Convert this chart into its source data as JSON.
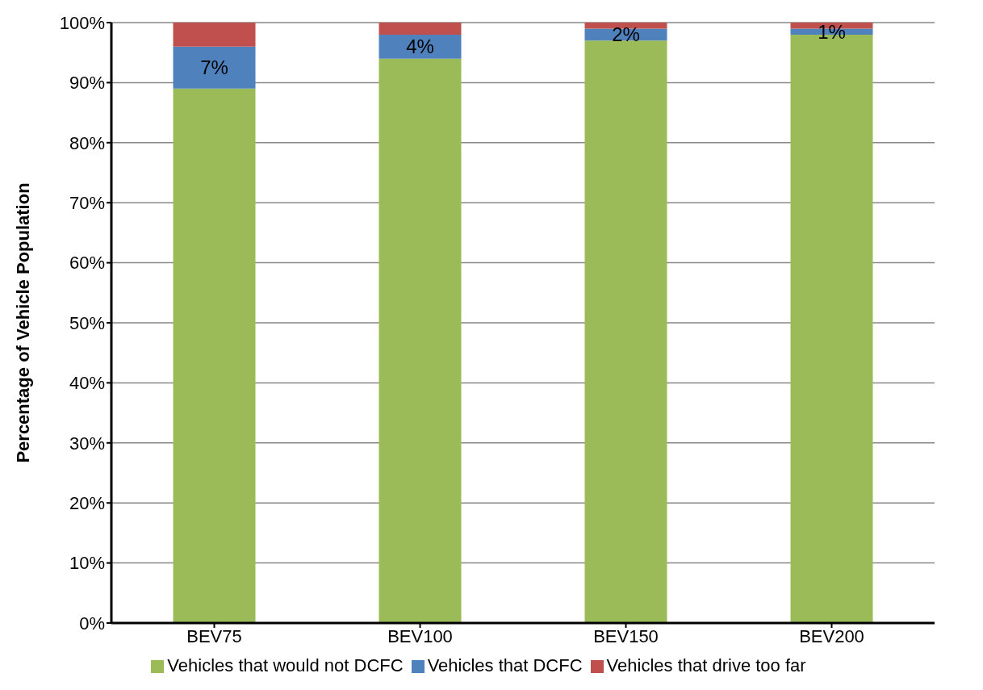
{
  "chart_data": {
    "type": "bar",
    "stacked": true,
    "ylabel": "Percentage of Vehicle Population",
    "categories": [
      "BEV75",
      "BEV100",
      "BEV150",
      "BEV200"
    ],
    "series": [
      {
        "name": "Vehicles that would not DCFC",
        "color": "#9bbb59",
        "values": [
          89,
          94,
          97,
          98
        ]
      },
      {
        "name": "Vehicles that DCFC",
        "color": "#4f81bd",
        "values": [
          7,
          4,
          2,
          1
        ],
        "value_labels": [
          "7%",
          "4%",
          "2%",
          "1%"
        ]
      },
      {
        "name": "Vehicles that drive too far",
        "color": "#c0504d",
        "values": [
          4,
          2,
          1,
          1
        ]
      }
    ],
    "ylim": [
      0,
      100
    ],
    "yticks": [
      {
        "value": 0,
        "label": "0%"
      },
      {
        "value": 10,
        "label": "10%"
      },
      {
        "value": 20,
        "label": "20%"
      },
      {
        "value": 30,
        "label": "30%"
      },
      {
        "value": 40,
        "label": "40%"
      },
      {
        "value": 50,
        "label": "50%"
      },
      {
        "value": 60,
        "label": "60%"
      },
      {
        "value": 70,
        "label": "70%"
      },
      {
        "value": 80,
        "label": "80%"
      },
      {
        "value": 90,
        "label": "90%"
      },
      {
        "value": 100,
        "label": "100%"
      }
    ],
    "grid": "y",
    "legend": "bottom"
  }
}
